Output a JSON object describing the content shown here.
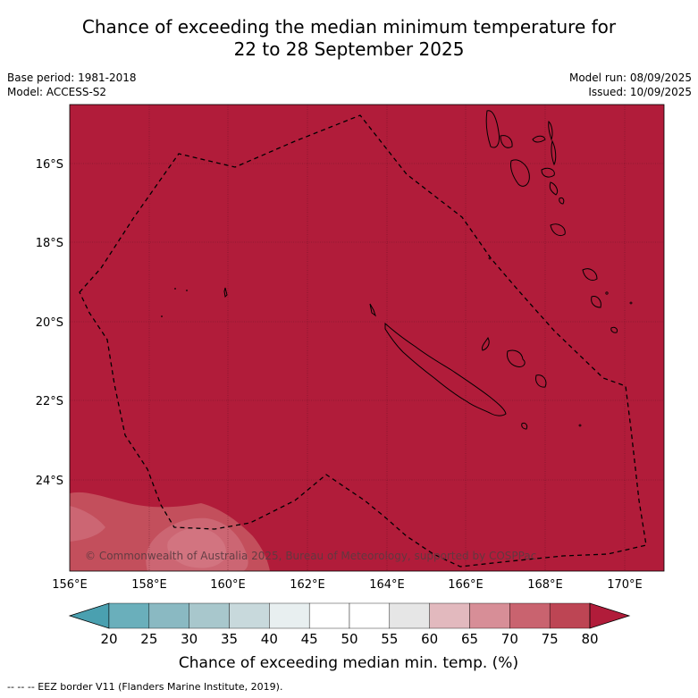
{
  "title": {
    "line1": "Chance of exceeding the median minimum temperature for",
    "line2": "22 to 28 September 2025"
  },
  "meta": {
    "base_period": "Base period: 1981-2018",
    "model": "Model: ACCESS-S2",
    "model_run": "Model run: 08/09/2025",
    "issued": "Issued: 10/09/2025"
  },
  "map": {
    "lon_ticks": [
      "156°E",
      "158°E",
      "160°E",
      "162°E",
      "164°E",
      "166°E",
      "168°E",
      "170°E"
    ],
    "lat_ticks": [
      "16°S",
      "18°S",
      "20°S",
      "22°S",
      "24°S"
    ],
    "background_color": "#b11c3a",
    "copyright": "© Commonwealth of Australia 2025, Bureau of Meteorology, supported by COSPPac"
  },
  "colorbar": {
    "ticks": [
      "20",
      "25",
      "30",
      "35",
      "40",
      "45",
      "50",
      "55",
      "60",
      "65",
      "70",
      "75",
      "80"
    ],
    "colors": [
      "#6aafbb",
      "#8ab9c2",
      "#a8c7cc",
      "#c8d9dc",
      "#e8eff0",
      "#ffffff",
      "#ffffff",
      "#e6e6e6",
      "#e2b9be",
      "#d78e97",
      "#c9636f",
      "#bd4554"
    ],
    "under_color": "#4aa0b0",
    "over_color": "#b11c3a",
    "label": "Chance of exceeding median min. temp. (%)"
  },
  "footer": {
    "legend_text": "--  --  -- EEZ border V11 (Flanders Marine Institute, 2019)."
  }
}
